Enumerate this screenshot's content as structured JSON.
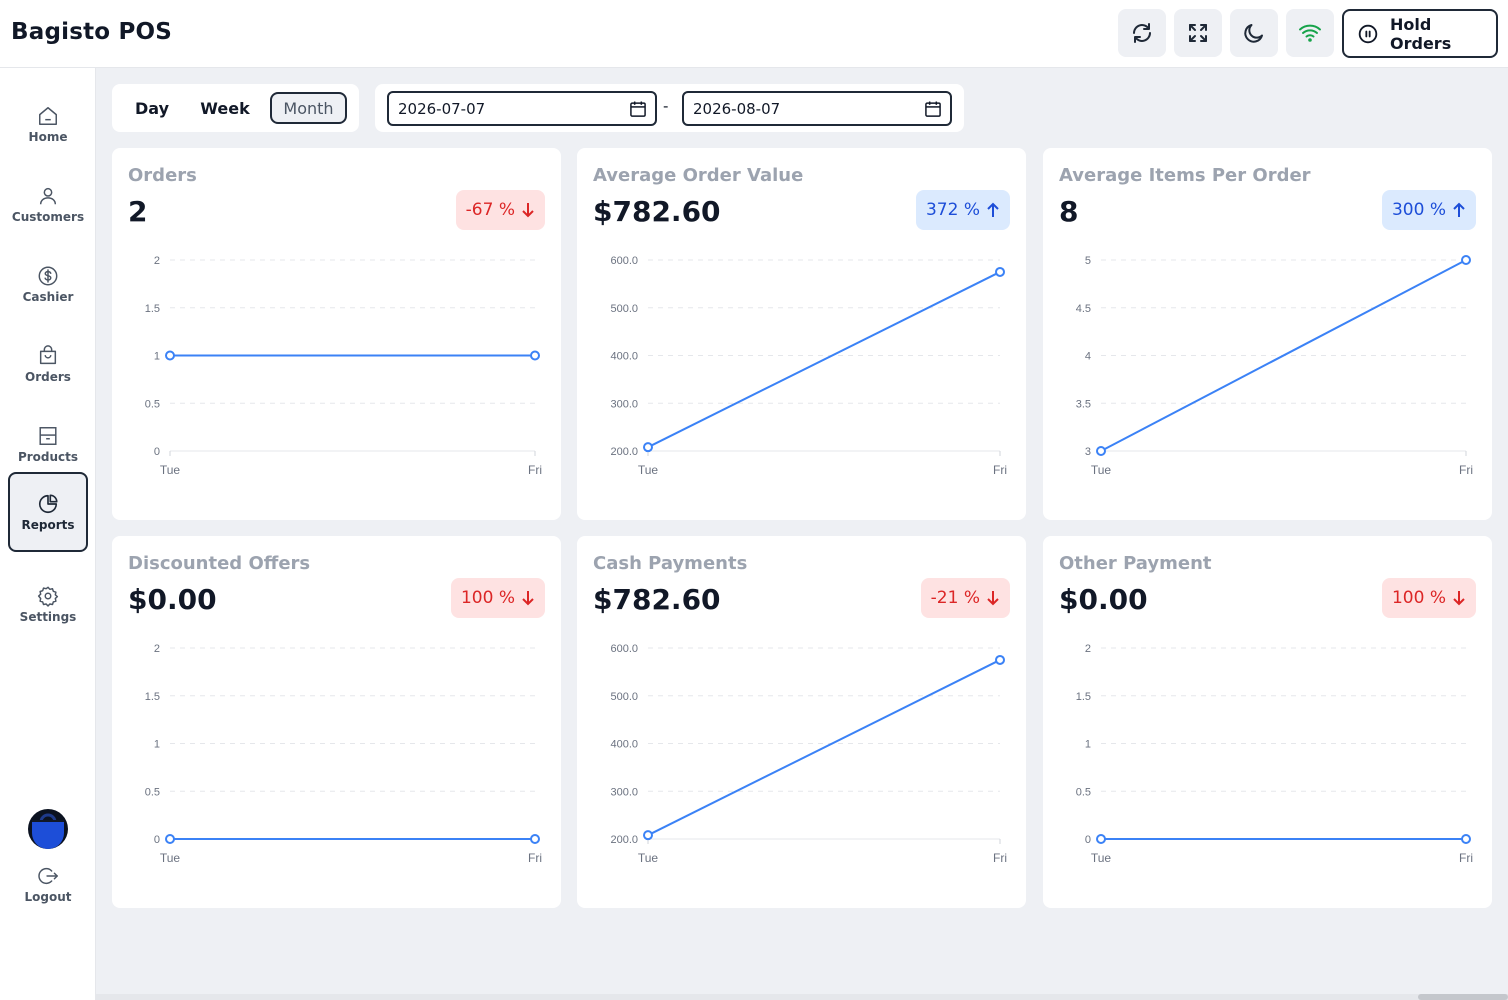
{
  "header": {
    "title": "Bagisto POS",
    "icons": [
      "refresh-icon",
      "fullscreen-icon",
      "moon-icon",
      "wifi-icon"
    ],
    "hold_orders_label": "Hold Orders"
  },
  "sidebar": {
    "items": [
      {
        "label": "Home",
        "icon": "home-icon",
        "active": false
      },
      {
        "label": "Customers",
        "icon": "user-icon",
        "active": false
      },
      {
        "label": "Cashier",
        "icon": "dollar-icon",
        "active": false
      },
      {
        "label": "Orders",
        "icon": "bag-icon",
        "active": false
      },
      {
        "label": "Products",
        "icon": "box-icon",
        "active": false
      },
      {
        "label": "Reports",
        "icon": "pie-chart-icon",
        "active": true
      },
      {
        "label": "Settings",
        "icon": "gear-icon",
        "active": false
      }
    ],
    "logout_label": "Logout"
  },
  "filters": {
    "periods": [
      "Day",
      "Week",
      "Month"
    ],
    "active_period": "Month",
    "start_date": "2026-07-07",
    "end_date": "2026-08-07",
    "separator": "-"
  },
  "colors": {
    "line": "#3b82f6",
    "down": "#dc2626",
    "up": "#1d4ed8"
  },
  "cards": [
    {
      "title": "Orders",
      "value": "2",
      "change": "-67 %",
      "direction": "down"
    },
    {
      "title": "Average Order Value",
      "value": "$782.60",
      "change": "372 %",
      "direction": "up"
    },
    {
      "title": "Average Items Per Order",
      "value": "8",
      "change": "300 %",
      "direction": "up"
    },
    {
      "title": "Discounted Offers",
      "value": "$0.00",
      "change": "100 %",
      "direction": "down"
    },
    {
      "title": "Cash Payments",
      "value": "$782.60",
      "change": "-21 %",
      "direction": "down"
    },
    {
      "title": "Other Payment",
      "value": "$0.00",
      "change": "100 %",
      "direction": "down"
    }
  ],
  "chart_data": [
    {
      "type": "line",
      "x": [
        "Tue",
        "Fri"
      ],
      "values": [
        1,
        1
      ],
      "ylim": [
        0,
        2
      ],
      "yticks": [
        "0",
        "0.5",
        "1",
        "1.5",
        "2"
      ]
    },
    {
      "type": "line",
      "x": [
        "Tue",
        "Fri"
      ],
      "values": [
        208,
        575
      ],
      "ylim": [
        200,
        600
      ],
      "yticks": [
        "200.0",
        "300.0",
        "400.0",
        "500.0",
        "600.0"
      ]
    },
    {
      "type": "line",
      "x": [
        "Tue",
        "Fri"
      ],
      "values": [
        3,
        5
      ],
      "ylim": [
        3,
        5
      ],
      "yticks": [
        "3",
        "3.5",
        "4",
        "4.5",
        "5"
      ]
    },
    {
      "type": "line",
      "x": [
        "Tue",
        "Fri"
      ],
      "values": [
        0,
        0
      ],
      "ylim": [
        0,
        2
      ],
      "yticks": [
        "0",
        "0.5",
        "1",
        "1.5",
        "2"
      ]
    },
    {
      "type": "line",
      "x": [
        "Tue",
        "Fri"
      ],
      "values": [
        208,
        575
      ],
      "ylim": [
        200,
        600
      ],
      "yticks": [
        "200.0",
        "300.0",
        "400.0",
        "500.0",
        "600.0"
      ]
    },
    {
      "type": "line",
      "x": [
        "Tue",
        "Fri"
      ],
      "values": [
        0,
        0
      ],
      "ylim": [
        0,
        2
      ],
      "yticks": [
        "0",
        "0.5",
        "1",
        "1.5",
        "2"
      ]
    }
  ]
}
